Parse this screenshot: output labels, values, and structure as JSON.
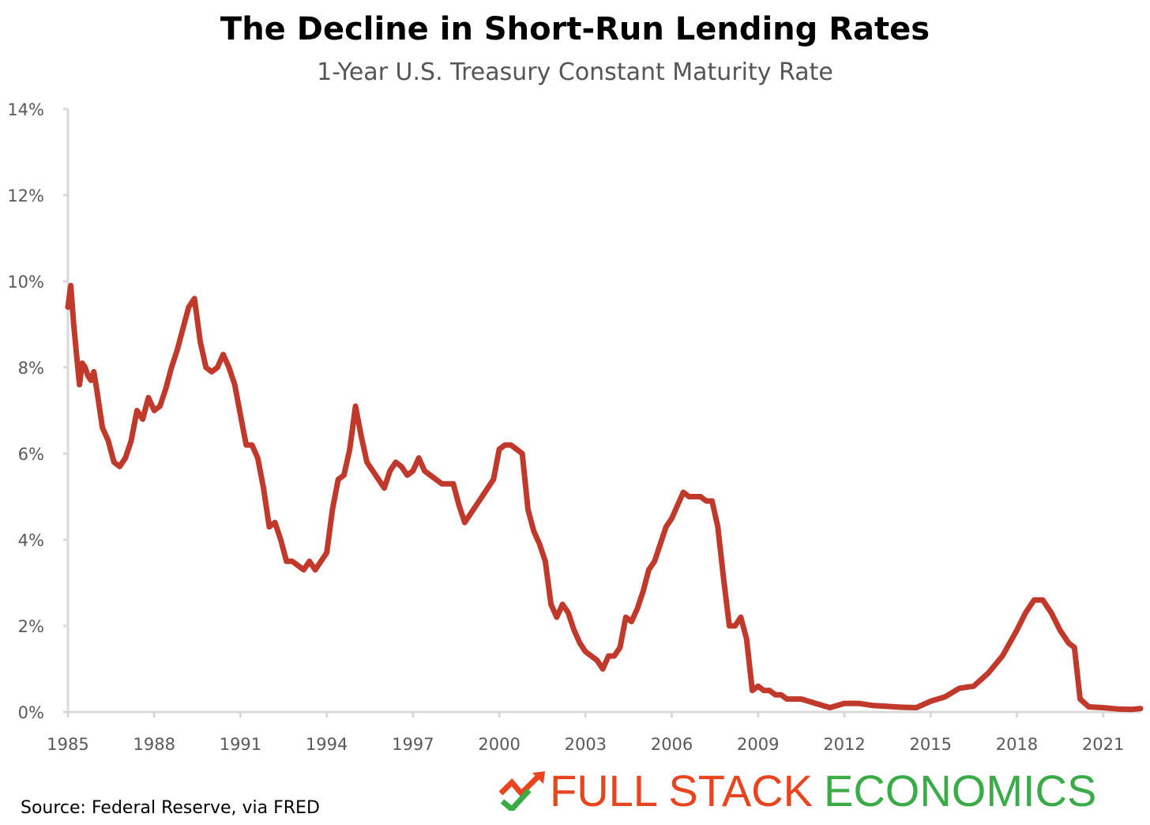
{
  "chart_data": {
    "type": "line",
    "title": "The Decline in Short-Run Lending Rates",
    "subtitle": "1-Year U.S. Treasury Constant Maturity Rate",
    "xlabel": "",
    "ylabel": "",
    "xlim": [
      1985,
      2022.3
    ],
    "ylim": [
      0,
      14
    ],
    "y_ticks": [
      "0%",
      "2%",
      "4%",
      "6%",
      "8%",
      "10%",
      "12%",
      "14%"
    ],
    "x_ticks": [
      "1985",
      "1988",
      "1991",
      "1994",
      "1997",
      "2000",
      "2003",
      "2006",
      "2009",
      "2012",
      "2015",
      "2018",
      "2021"
    ],
    "grid": false,
    "line_color": "#c0392b",
    "series": [
      {
        "x": [
          1985.0,
          1985.1,
          1985.2,
          1985.3,
          1985.4,
          1985.5,
          1985.6,
          1985.7,
          1985.8,
          1985.9,
          1986.0,
          1986.2,
          1986.4,
          1986.6,
          1986.8,
          1987.0,
          1987.2,
          1987.4,
          1987.6,
          1987.8,
          1988.0,
          1988.2,
          1988.4,
          1988.6,
          1988.8,
          1989.0,
          1989.2,
          1989.4,
          1989.6,
          1989.8,
          1990.0,
          1990.2,
          1990.4,
          1990.6,
          1990.8,
          1991.0,
          1991.2,
          1991.4,
          1991.6,
          1991.8,
          1992.0,
          1992.2,
          1992.4,
          1992.6,
          1992.8,
          1993.0,
          1993.2,
          1993.4,
          1993.6,
          1993.8,
          1994.0,
          1994.2,
          1994.4,
          1994.6,
          1994.8,
          1995.0,
          1995.2,
          1995.4,
          1995.6,
          1995.8,
          1996.0,
          1996.2,
          1996.4,
          1996.6,
          1996.8,
          1997.0,
          1997.2,
          1997.4,
          1997.6,
          1997.8,
          1998.0,
          1998.2,
          1998.4,
          1998.6,
          1998.8,
          1999.0,
          1999.2,
          1999.4,
          1999.6,
          1999.8,
          2000.0,
          2000.2,
          2000.4,
          2000.6,
          2000.8,
          2001.0,
          2001.2,
          2001.4,
          2001.6,
          2001.8,
          2002.0,
          2002.2,
          2002.4,
          2002.6,
          2002.8,
          2003.0,
          2003.2,
          2003.4,
          2003.6,
          2003.8,
          2004.0,
          2004.2,
          2004.4,
          2004.6,
          2004.8,
          2005.0,
          2005.2,
          2005.4,
          2005.6,
          2005.8,
          2006.0,
          2006.2,
          2006.4,
          2006.6,
          2006.8,
          2007.0,
          2007.2,
          2007.4,
          2007.6,
          2007.8,
          2008.0,
          2008.2,
          2008.4,
          2008.6,
          2008.8,
          2009.0,
          2009.2,
          2009.4,
          2009.6,
          2009.8,
          2010.0,
          2010.5,
          2011.0,
          2011.5,
          2012.0,
          2012.5,
          2013.0,
          2013.5,
          2014.0,
          2014.5,
          2015.0,
          2015.5,
          2016.0,
          2016.5,
          2017.0,
          2017.5,
          2018.0,
          2018.3,
          2018.6,
          2018.9,
          2019.2,
          2019.5,
          2019.8,
          2020.0,
          2020.2,
          2020.5,
          2021.0,
          2021.5,
          2022.0,
          2022.3
        ],
        "values": [
          9.4,
          9.9,
          9.0,
          8.3,
          7.6,
          8.1,
          8.0,
          7.8,
          7.7,
          7.9,
          7.5,
          6.6,
          6.3,
          5.8,
          5.7,
          5.9,
          6.3,
          7.0,
          6.8,
          7.3,
          7.0,
          7.1,
          7.5,
          8.0,
          8.4,
          8.9,
          9.4,
          9.6,
          8.6,
          8.0,
          7.9,
          8.0,
          8.3,
          8.0,
          7.6,
          6.9,
          6.2,
          6.2,
          5.9,
          5.2,
          4.3,
          4.4,
          4.0,
          3.5,
          3.5,
          3.4,
          3.3,
          3.5,
          3.3,
          3.5,
          3.7,
          4.7,
          5.4,
          5.5,
          6.1,
          7.1,
          6.4,
          5.8,
          5.6,
          5.4,
          5.2,
          5.6,
          5.8,
          5.7,
          5.5,
          5.6,
          5.9,
          5.6,
          5.5,
          5.4,
          5.3,
          5.3,
          5.3,
          4.8,
          4.4,
          4.6,
          4.8,
          5.0,
          5.2,
          5.4,
          6.1,
          6.2,
          6.2,
          6.1,
          6.0,
          4.7,
          4.2,
          3.9,
          3.5,
          2.5,
          2.2,
          2.5,
          2.3,
          1.9,
          1.6,
          1.4,
          1.3,
          1.2,
          1.0,
          1.3,
          1.3,
          1.5,
          2.2,
          2.1,
          2.4,
          2.8,
          3.3,
          3.5,
          3.9,
          4.3,
          4.5,
          4.8,
          5.1,
          5.0,
          5.0,
          5.0,
          4.9,
          4.9,
          4.3,
          3.1,
          2.0,
          2.0,
          2.2,
          1.7,
          0.5,
          0.6,
          0.5,
          0.5,
          0.4,
          0.4,
          0.3,
          0.3,
          0.2,
          0.1,
          0.2,
          0.2,
          0.15,
          0.13,
          0.11,
          0.1,
          0.25,
          0.35,
          0.55,
          0.6,
          0.9,
          1.3,
          1.9,
          2.3,
          2.6,
          2.6,
          2.3,
          1.9,
          1.6,
          1.5,
          0.3,
          0.12,
          0.1,
          0.07,
          0.06,
          0.08
        ]
      }
    ]
  },
  "source": "Source: Federal Reserve, via FRED",
  "brand": {
    "part1": "FULL STACK",
    "part2": "ECONOMICS",
    "part1_color": "#e8441d",
    "part2_color": "#3aab47",
    "logo_icon": "trend-arrow-check-icon"
  }
}
